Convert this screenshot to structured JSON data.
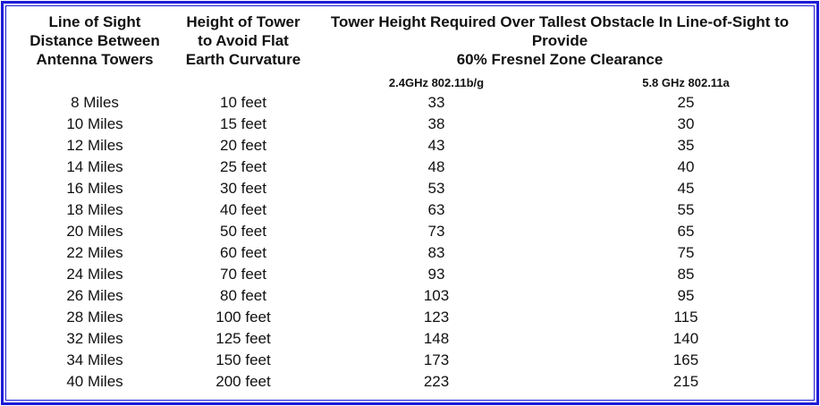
{
  "table": {
    "headers": [
      [
        "Line of Sight",
        "Distance Between",
        "Antenna Towers"
      ],
      [
        "Height of Tower",
        "to Avoid Flat",
        "Earth Curvature"
      ],
      [
        "Tower Height Required Over Tallest Obstacle In Line-of-Sight to",
        "Provide",
        "60% Fresnel Zone Clearance"
      ]
    ],
    "subheaders": [
      "2.4GHz 802.11b/g",
      "5.8 GHz 802.11a"
    ],
    "rows": [
      [
        "8 Miles",
        "10 feet",
        "33",
        "25"
      ],
      [
        "10 Miles",
        "15 feet",
        "38",
        "30"
      ],
      [
        "12 Miles",
        "20 feet",
        "43",
        "35"
      ],
      [
        "14 Miles",
        "25 feet",
        "48",
        "40"
      ],
      [
        "16 Miles",
        "30 feet",
        "53",
        "45"
      ],
      [
        "18 Miles",
        "40 feet",
        "63",
        "55"
      ],
      [
        "20 Miles",
        "50 feet",
        "73",
        "65"
      ],
      [
        "22 Miles",
        "60 feet",
        "83",
        "75"
      ],
      [
        "24 Miles",
        "70 feet",
        "93",
        "85"
      ],
      [
        "26 Miles",
        "80 feet",
        "103",
        "95"
      ],
      [
        "28 Miles",
        "100 feet",
        "123",
        "115"
      ],
      [
        "32 Miles",
        "125 feet",
        "148",
        "140"
      ],
      [
        "34 Miles",
        "150 feet",
        "173",
        "165"
      ],
      [
        "40 Miles",
        "200 feet",
        "223",
        "215"
      ]
    ]
  }
}
